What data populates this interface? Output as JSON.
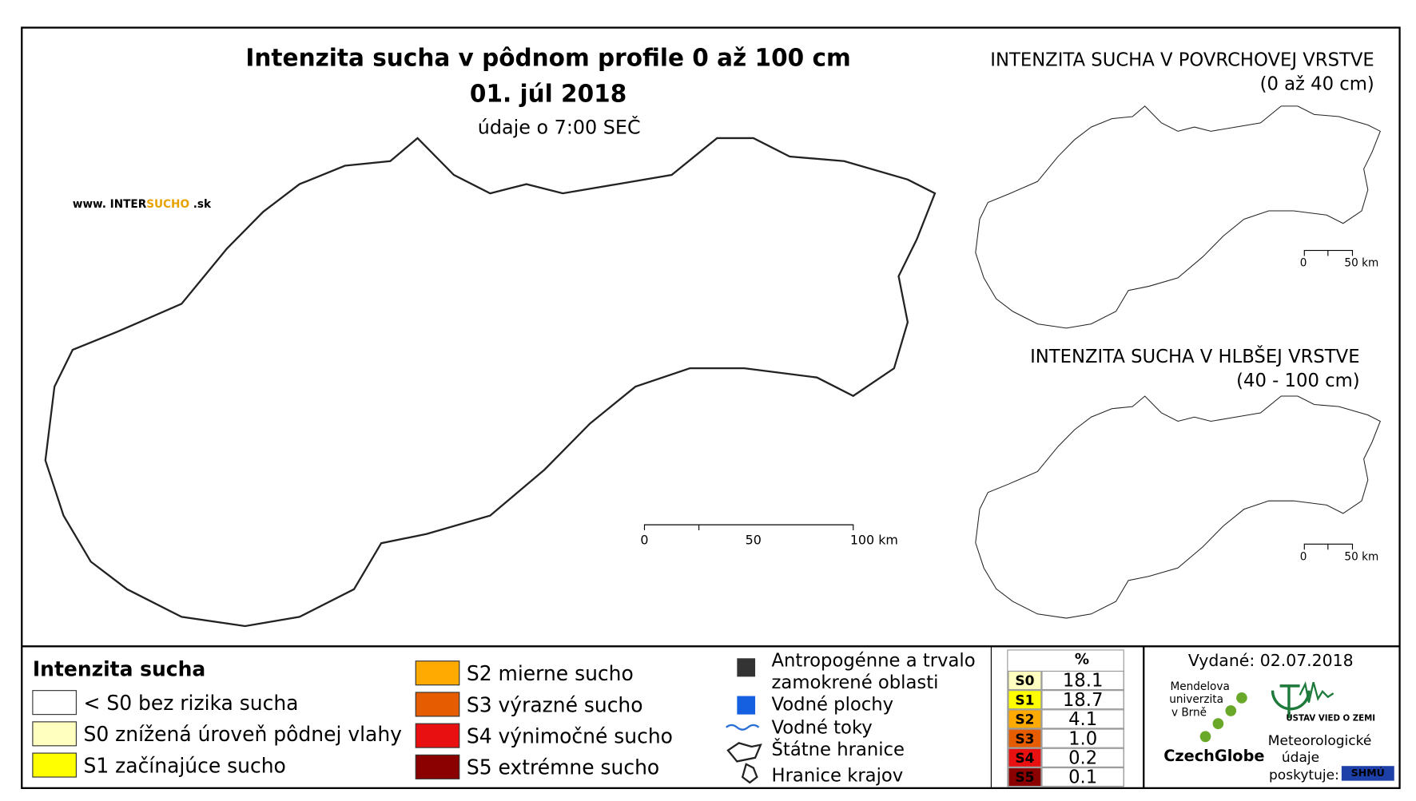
{
  "title": "Intenzita sucha v pôdnom profile 0 až 100 cm",
  "date": "01. júl 2018",
  "subtitle": "údaje o 7:00 SEČ",
  "website": {
    "prefix": "www. INTER",
    "highlight": "SUCHO",
    "suffix": " .sk"
  },
  "main_scale": [
    "0",
    "50",
    "100 km"
  ],
  "inset_top": {
    "title": "INTENZITA SUCHA V POVRCHOVEJ VRSTVE",
    "subtitle": "(0 až 40 cm)",
    "scale": [
      "0",
      "50 km"
    ]
  },
  "inset_bottom": {
    "title": "INTENZITA SUCHA V HLBŠEJ VRSTVE",
    "subtitle": "(40 - 100 cm)",
    "scale": [
      "0",
      "50 km"
    ]
  },
  "legend": {
    "title": "Intenzita sucha",
    "items": [
      {
        "label": "< S0 bez rizika sucha",
        "color": "#ffffff"
      },
      {
        "label": "S0 znížená úroveň pôdnej vlahy",
        "color": "#ffffc0"
      },
      {
        "label": "S1 začínajúce sucho",
        "color": "#ffff00"
      },
      {
        "label": "S2 mierne sucho",
        "color": "#ffaa00"
      },
      {
        "label": "S3 výrazné sucho",
        "color": "#e65c00"
      },
      {
        "label": "S4 výnimočné sucho",
        "color": "#e81010"
      },
      {
        "label": "S5 extrémne sucho",
        "color": "#8b0000"
      }
    ]
  },
  "layers": [
    [
      "Antropogénne a trvalo",
      "zamokrené oblasti"
    ],
    "Vodné plochy",
    "Vodné toky",
    "Štátne hranice",
    "Hranice krajov"
  ],
  "table": {
    "header": "%",
    "rows": [
      [
        "S0",
        "18.1"
      ],
      [
        "S1",
        "18.7"
      ],
      [
        "S2",
        "4.1"
      ],
      [
        "S3",
        "1.0"
      ],
      [
        "S4",
        "0.2"
      ],
      [
        "S5",
        "0.1"
      ]
    ]
  },
  "issued": "Vydané: 02.07.2018",
  "logos": {
    "mendel": [
      "Mendelova",
      "univerzita",
      "v Brně"
    ],
    "czechglobe": "CzechGlobe",
    "ustav": "ÚSTAV VIED O ZEMI",
    "meteo": [
      "Meteorologické",
      "údaje",
      "poskytuje:"
    ],
    "shmu": "SHMÚ"
  }
}
